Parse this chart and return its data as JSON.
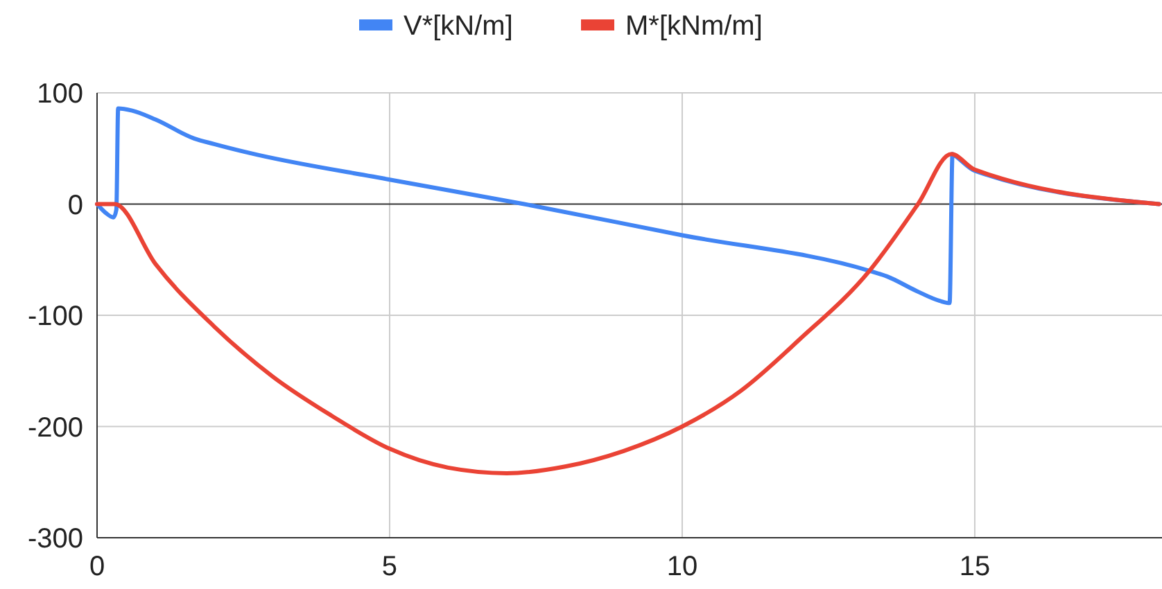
{
  "chart_data": {
    "type": "line",
    "xlim": [
      0,
      18.2
    ],
    "xticks": [
      0,
      5,
      10,
      15
    ],
    "ylim": [
      -300,
      100
    ],
    "yticks": [
      -300,
      -200,
      -100,
      0,
      100
    ],
    "grid": true,
    "legend": "top",
    "line_style": "solid",
    "marker": "none",
    "series": [
      {
        "name": "V*[kN/m]",
        "color": "#4285f4",
        "x": [
          0,
          0.15,
          0.28,
          0.33,
          0.36,
          0.6,
          1,
          1.66,
          2,
          2.6,
          5,
          7.3,
          10,
          13.2,
          13.5,
          14,
          14.4,
          14.57,
          14.62,
          14.65,
          15,
          18.15
        ],
        "values": [
          0,
          -8,
          -12,
          -5,
          86,
          84,
          76,
          59,
          54,
          46,
          22,
          0,
          -28,
          -60,
          -65,
          -78,
          -87,
          -89,
          45,
          44,
          30,
          0
        ]
      },
      {
        "name": "M*[kNm/m]",
        "color": "#ea4335",
        "x": [
          0,
          0.3,
          1,
          2,
          3,
          4,
          5,
          6,
          7,
          8,
          9,
          10,
          11,
          12,
          13.2,
          14.03,
          14.6,
          15,
          18.15
        ],
        "values": [
          0,
          0,
          -54,
          -110,
          -155,
          -190,
          -220,
          -237,
          -242,
          -236,
          -222,
          -200,
          -168,
          -122,
          -60,
          0,
          45,
          31,
          0
        ]
      }
    ]
  }
}
